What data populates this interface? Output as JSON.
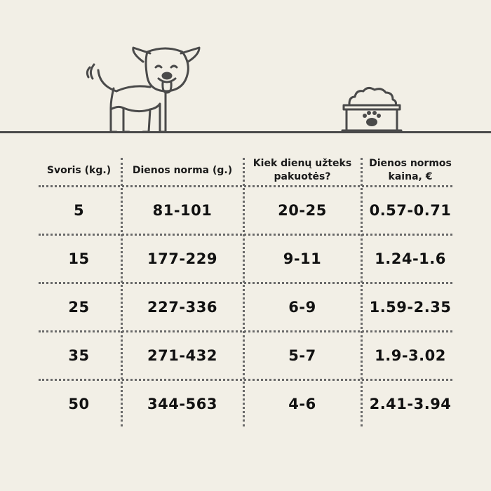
{
  "table": {
    "headers": [
      "Svoris (kg.)",
      "Dienos norma (g.)",
      "Kiek dienų užteks pakuotės?",
      "Dienos normos kaina, €"
    ],
    "rows": [
      [
        "5",
        "81-101",
        "20-25",
        "0.57-0.71"
      ],
      [
        "15",
        "177-229",
        "9-11",
        "1.24-1.6"
      ],
      [
        "25",
        "227-336",
        "6-9",
        "1.59-2.35"
      ],
      [
        "35",
        "271-432",
        "5-7",
        "1.9-3.02"
      ],
      [
        "50",
        "344-563",
        "4-6",
        "2.41-3.94"
      ]
    ]
  },
  "illustration": {
    "left_icon": "dog-icon",
    "right_icon": "food-bowl-paw-icon",
    "line_color": "#4a4a4a",
    "background_color": "#f2efe6"
  }
}
